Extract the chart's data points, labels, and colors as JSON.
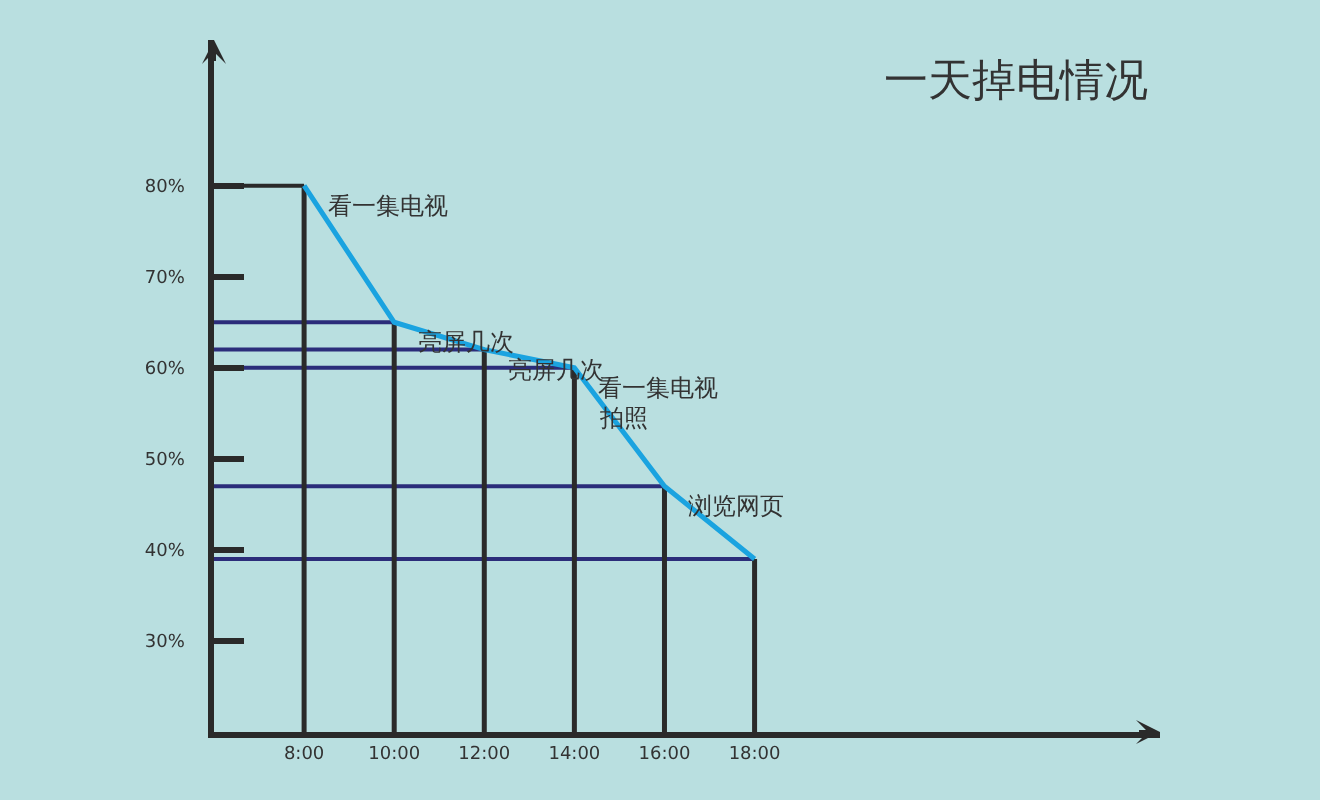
{
  "chart_data": {
    "type": "line",
    "title": "一天掉电情况",
    "x": [
      8,
      10,
      12,
      14,
      16,
      18
    ],
    "series": [
      {
        "color": "#1aa3e0",
        "values": [
          80,
          65,
          62,
          60,
          47,
          39
        ]
      }
    ],
    "xlim": [
      6,
      27
    ],
    "xticks": [
      {
        "value": 8,
        "label": "8:00"
      },
      {
        "value": 10,
        "label": "10:00"
      },
      {
        "value": 12,
        "label": "12:00"
      },
      {
        "value": 14,
        "label": "14:00"
      },
      {
        "value": 16,
        "label": "16:00"
      },
      {
        "value": 18,
        "label": "18:00"
      }
    ],
    "ylim": [
      20,
      96
    ],
    "yticks": [
      {
        "value": 30,
        "label": "30%"
      },
      {
        "value": 40,
        "label": "40%"
      },
      {
        "value": 50,
        "label": "50%"
      },
      {
        "value": 60,
        "label": "60%"
      },
      {
        "value": 70,
        "label": "70%"
      },
      {
        "value": 80,
        "label": "80%"
      }
    ],
    "ref_lines": [
      {
        "axis": "y",
        "value": 80,
        "color": "#2a2a2a"
      },
      {
        "axis": "y",
        "value": 65,
        "color": "#2b2d7a"
      },
      {
        "axis": "y",
        "value": 62,
        "color": "#2b2d7a"
      },
      {
        "axis": "y",
        "value": 60,
        "color": "#2b2d7a"
      },
      {
        "axis": "y",
        "value": 47,
        "color": "#2b2d7a"
      },
      {
        "axis": "y",
        "value": 39,
        "color": "#2b2d7a"
      },
      {
        "axis": "x",
        "value": 8,
        "color": "#2a2a2a"
      },
      {
        "axis": "x",
        "value": 10,
        "color": "#2a2a2a"
      },
      {
        "axis": "x",
        "value": 12,
        "color": "#2a2a2a"
      },
      {
        "axis": "x",
        "value": 14,
        "color": "#2a2a2a"
      },
      {
        "axis": "x",
        "value": 16,
        "color": "#2a2a2a"
      },
      {
        "axis": "x",
        "value": 18,
        "color": "#2a2a2a"
      }
    ],
    "annotations": [
      {
        "text": "看一集电视",
        "x": 8,
        "y": 80
      },
      {
        "text": "亮屏几次",
        "x": 10,
        "y": 65
      },
      {
        "text": "亮屏几次",
        "x": 12,
        "y": 62
      },
      {
        "text": "看一集电视",
        "x": 14,
        "y": 60
      },
      {
        "text": "拍照",
        "x": 14,
        "y": 60
      },
      {
        "text": "浏览网页",
        "x": 16,
        "y": 47
      }
    ]
  }
}
